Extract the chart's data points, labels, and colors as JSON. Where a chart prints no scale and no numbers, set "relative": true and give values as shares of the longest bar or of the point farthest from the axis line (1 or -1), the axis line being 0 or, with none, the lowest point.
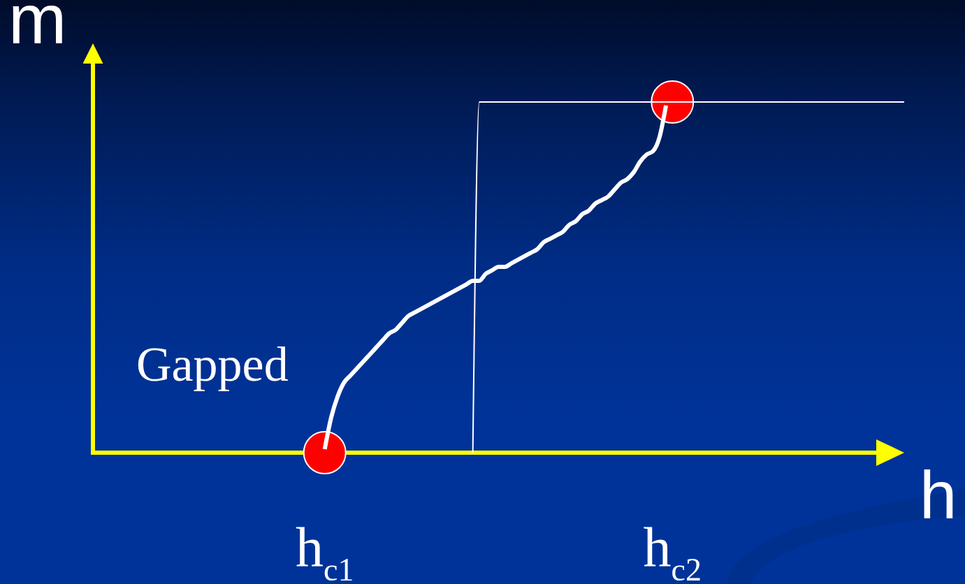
{
  "chart_data": {
    "type": "line",
    "xlabel": "h",
    "ylabel": "m",
    "relative": true,
    "categories": [
      null,
      null,
      null,
      null,
      null,
      null,
      null,
      null,
      null,
      null,
      null,
      null,
      null,
      null,
      null,
      null,
      null,
      null,
      null,
      null,
      null,
      null,
      null,
      null,
      null,
      null,
      null,
      null,
      null,
      null,
      null,
      null,
      null,
      null,
      null,
      null,
      "h$_{c1}$",
      null,
      null,
      null,
      null,
      null,
      null,
      null,
      null,
      null,
      null,
      null,
      null,
      null,
      null,
      null,
      null,
      null,
      null,
      null,
      null,
      null,
      null,
      null,
      null,
      null,
      null,
      null,
      null,
      null,
      null,
      null,
      null,
      null,
      null,
      null,
      null,
      null,
      null,
      null,
      null,
      null,
      null,
      null,
      null,
      null,
      null,
      null,
      null,
      null,
      null,
      null,
      null,
      null,
      "h$_{c2}$",
      null,
      null,
      null,
      null,
      null,
      null,
      null,
      null,
      null,
      null,
      null,
      null,
      null,
      null,
      null,
      null,
      null,
      null,
      null,
      null,
      null,
      null,
      null,
      null,
      null,
      null,
      null,
      null,
      null,
      null,
      null,
      null,
      null,
      null,
      null,
      null
    ],
    "series": [
      {
        "type": "scatter",
        "color": "#ff0000",
        "marker": "circle",
        "values": [
          null,
          null,
          null,
          null,
          null,
          null,
          null,
          null,
          null,
          null,
          null,
          null,
          null,
          null,
          null,
          null,
          null,
          null,
          null,
          null,
          null,
          null,
          null,
          null,
          null,
          null,
          null,
          null,
          null,
          null,
          null,
          null,
          null,
          null,
          null,
          null,
          0,
          null,
          null,
          null,
          null,
          null,
          null,
          null,
          null,
          null,
          null,
          null,
          null,
          null,
          null,
          null,
          null,
          null,
          null,
          null,
          null,
          null,
          null,
          null,
          null,
          null,
          null,
          null,
          null,
          null,
          null,
          null,
          null,
          null,
          null,
          null,
          null,
          null,
          null,
          null,
          null,
          null,
          null,
          null,
          null,
          null,
          null,
          null,
          null,
          null,
          null,
          null,
          null,
          null,
          1,
          null,
          null,
          null,
          null,
          null,
          null,
          null,
          null,
          null,
          null,
          null,
          null,
          null,
          null,
          null,
          null,
          null,
          null,
          null,
          null,
          null,
          null,
          null,
          null,
          null,
          null,
          null,
          null,
          null,
          null,
          null,
          null,
          null,
          null,
          null,
          null
        ]
      },
      {
        "color": "#ffffff",
        "marker": "none",
        "values": [
          null,
          null,
          null,
          null,
          null,
          null,
          null,
          null,
          null,
          null,
          null,
          null,
          null,
          null,
          null,
          null,
          null,
          null,
          null,
          null,
          null,
          null,
          null,
          null,
          null,
          null,
          null,
          null,
          null,
          null,
          null,
          null,
          null,
          null,
          null,
          null,
          null,
          null,
          null,
          null,
          null,
          null,
          null,
          null,
          null,
          null,
          null,
          null,
          null,
          null,
          null,
          null,
          null,
          null,
          null,
          null,
          null,
          null,
          null,
          0,
          1,
          1,
          1,
          1,
          1,
          1,
          1,
          1,
          1,
          1,
          1,
          1,
          1,
          1,
          1,
          1,
          1,
          1,
          1,
          1,
          1,
          1,
          1,
          1,
          1,
          1,
          1,
          1,
          1,
          1,
          1,
          1,
          1,
          1,
          1,
          1,
          1,
          1,
          1,
          1,
          1,
          1,
          1,
          1,
          1,
          1,
          1,
          1,
          1,
          1,
          1,
          1,
          1,
          1,
          1,
          1,
          1,
          1,
          1,
          1,
          1,
          1,
          1,
          1,
          1,
          1,
          1
        ]
      },
      {
        "name": "Gapped",
        "color": "#ffffff",
        "marker": "none",
        "values": [
          null,
          null,
          null,
          null,
          null,
          null,
          null,
          null,
          null,
          null,
          null,
          null,
          null,
          null,
          null,
          null,
          null,
          null,
          null,
          null,
          null,
          null,
          null,
          null,
          null,
          null,
          null,
          null,
          null,
          null,
          null,
          null,
          null,
          null,
          null,
          null,
          0.01,
          0.1,
          0.16,
          0.2,
          0.22,
          0.24,
          0.26,
          0.28,
          0.3,
          0.32,
          0.34,
          0.35,
          0.37,
          0.39,
          0.4,
          0.41,
          0.42,
          0.43,
          0.44,
          0.45,
          0.46,
          0.47,
          0.48,
          0.49,
          0.49,
          0.51,
          0.52,
          0.53,
          0.53,
          0.54,
          0.55,
          0.56,
          0.57,
          0.58,
          0.6,
          0.61,
          0.62,
          0.63,
          0.65,
          0.66,
          0.68,
          0.69,
          0.71,
          0.72,
          0.73,
          0.75,
          0.77,
          0.78,
          0.8,
          0.83,
          0.85,
          0.86,
          0.9,
          0.99,
          null,
          null,
          null,
          null,
          null,
          null,
          null,
          null,
          null,
          null,
          null,
          null,
          null,
          null,
          null,
          null,
          null,
          null,
          null,
          null,
          null,
          null,
          null,
          null,
          null,
          null,
          null,
          null,
          null,
          null,
          null,
          null,
          null,
          null,
          null,
          null,
          null
        ]
      }
    ]
  }
}
